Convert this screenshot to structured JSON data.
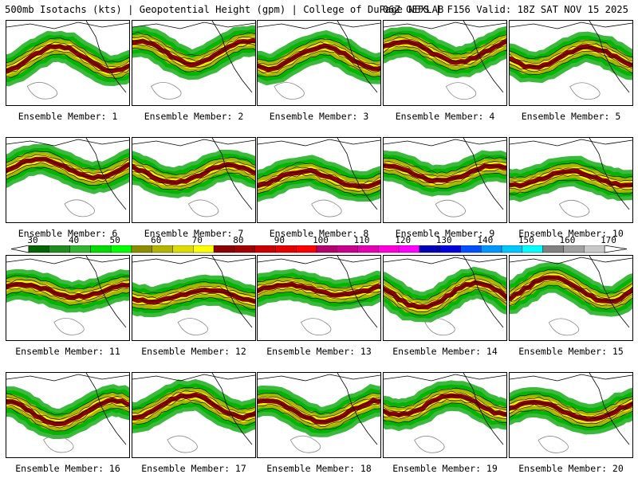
{
  "header": {
    "left_text": "500mb Isotachs (kts) | Geopotential Height (gpm) | College of DuPage NEXLAB",
    "right_text": "06Z GEFS | F156 Valid: 18Z SAT NOV 15 2025"
  },
  "members": [
    "Ensemble Member: 1",
    "Ensemble Member: 2",
    "Ensemble Member: 3",
    "Ensemble Member: 4",
    "Ensemble Member: 5",
    "Ensemble Member: 6",
    "Ensemble Member: 7",
    "Ensemble Member: 8",
    "Ensemble Member: 9",
    "Ensemble Member: 10",
    "Ensemble Member: 11",
    "Ensemble Member: 12",
    "Ensemble Member: 13",
    "Ensemble Member: 14",
    "Ensemble Member: 15",
    "Ensemble Member: 16",
    "Ensemble Member: 17",
    "Ensemble Member: 18",
    "Ensemble Member: 19",
    "Ensemble Member: 20"
  ],
  "colorbar": {
    "ticks": [
      "30",
      "40",
      "50",
      "60",
      "70",
      "80",
      "90",
      "100",
      "110",
      "120",
      "130",
      "140",
      "150",
      "160",
      "170"
    ],
    "colors": [
      "#006400",
      "#1e8c1e",
      "#32b432",
      "#00dc00",
      "#00ff00",
      "#8c8c00",
      "#b4b400",
      "#dcdc00",
      "#ffff00",
      "#8b0000",
      "#a00000",
      "#c80000",
      "#e60000",
      "#ff0000",
      "#b4006e",
      "#c8008c",
      "#e600b4",
      "#ff00dc",
      "#ff00ff",
      "#0000b4",
      "#0000dc",
      "#0050ff",
      "#0096ff",
      "#00c8ff",
      "#00ffff",
      "#808080",
      "#a0a0a0",
      "#c8c8c8"
    ]
  },
  "legend_colors": {
    "jet_outer": "#32b432",
    "jet_mid": "#b4b400",
    "jet_inner": "#ffff00",
    "jet_core": "#8b0000"
  }
}
